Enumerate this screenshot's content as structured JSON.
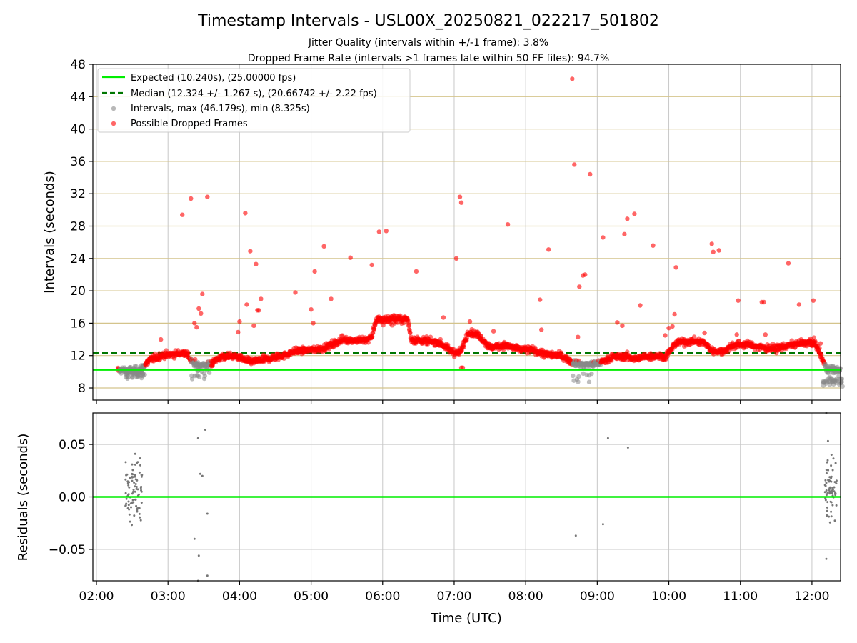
{
  "chart_data": {
    "title": "Timestamp Intervals - USL00X_20250821_022217_501802",
    "subtitles": [
      "Jitter Quality (intervals within +/-1 frame): 3.8%",
      "Dropped Frame Rate (intervals >1 frames late within 50 FF files): 94.7%"
    ],
    "xlabel": "Time (UTC)",
    "x_ticks": [
      "02:00",
      "03:00",
      "04:00",
      "05:00",
      "06:00",
      "07:00",
      "08:00",
      "09:00",
      "10:00",
      "11:00",
      "12:00"
    ],
    "xlim_hours": [
      1.95,
      12.4
    ],
    "panels": [
      {
        "type": "scatter",
        "ylabel": "Intervals (seconds)",
        "ylim": [
          6.5,
          48
        ],
        "yticks": [
          8,
          12,
          16,
          20,
          24,
          28,
          32,
          36,
          40,
          44,
          48
        ],
        "yticks_labels": [
          "8",
          "12",
          "16",
          "20",
          "24",
          "28",
          "32",
          "36",
          "40",
          "44",
          "48"
        ],
        "grid": "on",
        "legend": "top-left",
        "legend_entries": [
          "Expected (10.240s), (25.00000 fps)",
          "Median (12.324 +/- 1.267 s), (20.66742 +/- 2.22 fps)",
          "Intervals, max (46.179s), min (8.325s)",
          "Possible Dropped Frames"
        ],
        "expected_line": 10.24,
        "median_line": 12.324,
        "colors": {
          "expected": "#00ee00",
          "median": "#007700",
          "intervals": "#888888",
          "dropped": "#ff0000",
          "grid_h": "#d4c48c",
          "grid_v": "#c8c8c8"
        },
        "trend_hours_values": [
          [
            2.3,
            10.2
          ],
          [
            2.45,
            10.2
          ],
          [
            2.6,
            10.2
          ],
          [
            2.65,
            10.6
          ],
          [
            2.75,
            11.5
          ],
          [
            2.9,
            12.0
          ],
          [
            3.1,
            12.2
          ],
          [
            3.25,
            12.4
          ],
          [
            3.35,
            11.0
          ],
          [
            3.5,
            10.8
          ],
          [
            3.6,
            11.0
          ],
          [
            3.75,
            11.9
          ],
          [
            3.9,
            11.9
          ],
          [
            4.0,
            11.8
          ],
          [
            4.1,
            11.3
          ],
          [
            4.2,
            11.3
          ],
          [
            4.4,
            11.6
          ],
          [
            4.6,
            12.0
          ],
          [
            4.8,
            12.6
          ],
          [
            5.0,
            12.7
          ],
          [
            5.15,
            12.9
          ],
          [
            5.3,
            13.4
          ],
          [
            5.45,
            14.0
          ],
          [
            5.6,
            13.9
          ],
          [
            5.75,
            13.9
          ],
          [
            5.85,
            14.3
          ],
          [
            5.9,
            16.3
          ],
          [
            6.1,
            16.5
          ],
          [
            6.35,
            16.5
          ],
          [
            6.4,
            14.0
          ],
          [
            6.6,
            13.8
          ],
          [
            6.8,
            13.6
          ],
          [
            6.95,
            12.6
          ],
          [
            7.05,
            12.3
          ],
          [
            7.1,
            12.6
          ],
          [
            7.2,
            15.0
          ],
          [
            7.35,
            14.5
          ],
          [
            7.5,
            13.0
          ],
          [
            7.7,
            13.3
          ],
          [
            7.9,
            12.8
          ],
          [
            8.1,
            12.7
          ],
          [
            8.3,
            12.1
          ],
          [
            8.5,
            12.0
          ],
          [
            8.65,
            11.2
          ],
          [
            8.8,
            10.9
          ],
          [
            9.0,
            11.0
          ],
          [
            9.2,
            11.8
          ],
          [
            9.4,
            11.9
          ],
          [
            9.55,
            11.6
          ],
          [
            9.7,
            11.9
          ],
          [
            9.85,
            12.0
          ],
          [
            9.95,
            11.8
          ],
          [
            10.1,
            13.6
          ],
          [
            10.35,
            13.8
          ],
          [
            10.5,
            13.6
          ],
          [
            10.6,
            12.6
          ],
          [
            10.75,
            12.5
          ],
          [
            10.9,
            13.3
          ],
          [
            11.1,
            13.4
          ],
          [
            11.3,
            13.0
          ],
          [
            11.5,
            12.9
          ],
          [
            11.7,
            13.3
          ],
          [
            11.9,
            13.6
          ],
          [
            12.05,
            13.5
          ],
          [
            12.15,
            11.5
          ],
          [
            12.2,
            10.4
          ],
          [
            12.4,
            10.2
          ]
        ],
        "gray_segments": [
          [
            2.32,
            2.68
          ],
          [
            3.32,
            3.6
          ],
          [
            8.65,
            9.05
          ],
          [
            12.18,
            12.4
          ]
        ],
        "outliers": [
          [
            2.9,
            14.0
          ],
          [
            3.2,
            29.4
          ],
          [
            3.32,
            31.4
          ],
          [
            3.37,
            16.0
          ],
          [
            3.4,
            15.5
          ],
          [
            3.43,
            17.8
          ],
          [
            3.46,
            17.2
          ],
          [
            3.48,
            19.6
          ],
          [
            3.55,
            31.6
          ],
          [
            3.98,
            14.9
          ],
          [
            4.0,
            16.2
          ],
          [
            4.08,
            29.6
          ],
          [
            4.1,
            18.3
          ],
          [
            4.15,
            24.9
          ],
          [
            4.2,
            15.7
          ],
          [
            4.23,
            23.3
          ],
          [
            4.25,
            17.6
          ],
          [
            4.27,
            17.6
          ],
          [
            4.3,
            19.0
          ],
          [
            4.78,
            19.8
          ],
          [
            5.0,
            17.7
          ],
          [
            5.03,
            16.0
          ],
          [
            5.05,
            22.4
          ],
          [
            5.18,
            25.5
          ],
          [
            5.28,
            19.0
          ],
          [
            5.55,
            24.1
          ],
          [
            5.85,
            23.2
          ],
          [
            5.95,
            27.3
          ],
          [
            6.05,
            27.4
          ],
          [
            6.47,
            22.4
          ],
          [
            6.85,
            16.7
          ],
          [
            7.03,
            24.0
          ],
          [
            7.08,
            31.6
          ],
          [
            7.1,
            30.9
          ],
          [
            7.1,
            10.5
          ],
          [
            7.12,
            10.5
          ],
          [
            7.22,
            16.2
          ],
          [
            7.55,
            15.0
          ],
          [
            7.75,
            28.2
          ],
          [
            8.2,
            18.9
          ],
          [
            8.22,
            15.2
          ],
          [
            8.32,
            25.1
          ],
          [
            8.65,
            46.2
          ],
          [
            8.68,
            35.6
          ],
          [
            8.73,
            14.3
          ],
          [
            8.75,
            20.5
          ],
          [
            8.8,
            21.9
          ],
          [
            8.83,
            22.0
          ],
          [
            8.9,
            34.4
          ],
          [
            9.08,
            26.6
          ],
          [
            9.28,
            16.1
          ],
          [
            9.35,
            15.7
          ],
          [
            9.38,
            27.0
          ],
          [
            9.42,
            28.9
          ],
          [
            9.52,
            29.5
          ],
          [
            9.6,
            18.2
          ],
          [
            9.78,
            25.6
          ],
          [
            9.95,
            14.5
          ],
          [
            10.0,
            15.4
          ],
          [
            10.05,
            15.6
          ],
          [
            10.08,
            17.1
          ],
          [
            10.1,
            22.9
          ],
          [
            10.5,
            14.8
          ],
          [
            10.6,
            25.8
          ],
          [
            10.62,
            24.8
          ],
          [
            10.7,
            25.0
          ],
          [
            10.95,
            14.6
          ],
          [
            10.97,
            18.8
          ],
          [
            11.3,
            18.6
          ],
          [
            11.33,
            18.6
          ],
          [
            11.35,
            14.6
          ],
          [
            11.67,
            23.4
          ],
          [
            11.82,
            18.3
          ],
          [
            11.98,
            14.1
          ],
          [
            12.02,
            18.8
          ],
          [
            12.12,
            13.5
          ]
        ]
      },
      {
        "type": "scatter",
        "ylabel": "Residuals (seconds)",
        "ylim": [
          -0.08,
          0.08
        ],
        "yticks": [
          -0.05,
          0.0,
          0.05
        ],
        "yticks_labels": [
          "−0.05",
          "0.00",
          "0.05"
        ],
        "grid": "on",
        "zero_line": 0.0,
        "colors": {
          "zero": "#00ee00",
          "points": "#777777",
          "grid": "#c8c8c8"
        },
        "clusters": [
          {
            "x_range": [
              2.4,
              2.72
            ],
            "count": 85
          },
          {
            "x_range": [
              12.18,
              12.4
            ],
            "count": 70
          }
        ],
        "points": [
          [
            3.37,
            -0.04
          ],
          [
            3.42,
            0.056
          ],
          [
            3.43,
            -0.056
          ],
          [
            3.45,
            0.022
          ],
          [
            3.48,
            0.02
          ],
          [
            3.52,
            0.064
          ],
          [
            3.55,
            -0.016
          ],
          [
            3.55,
            -0.075
          ],
          [
            3.42,
            -0.08
          ],
          [
            8.7,
            -0.037
          ],
          [
            9.08,
            -0.026
          ],
          [
            9.15,
            0.056
          ],
          [
            9.43,
            0.047
          ],
          [
            12.2,
            -0.059
          ],
          [
            12.2,
            0.08
          ]
        ]
      }
    ]
  }
}
